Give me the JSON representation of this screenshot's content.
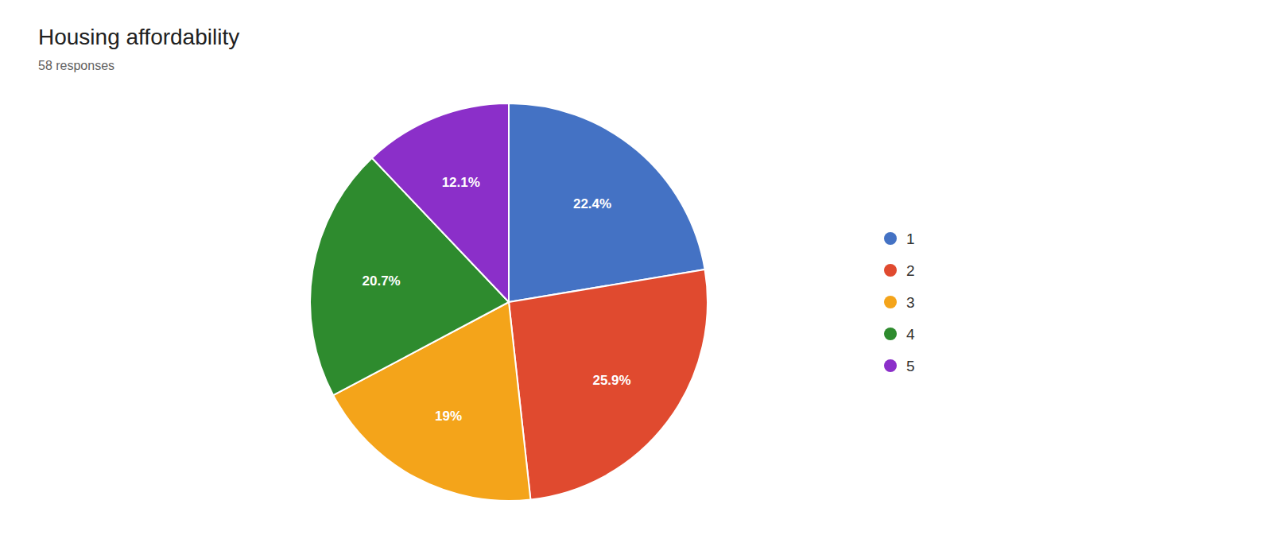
{
  "chart_data": {
    "type": "pie",
    "title": "Housing affordability",
    "subtitle": "58 responses",
    "categories": [
      "1",
      "2",
      "3",
      "4",
      "5"
    ],
    "values": [
      22.4,
      25.9,
      19.0,
      20.7,
      12.1
    ],
    "value_labels": [
      "22.4%",
      "25.9%",
      "19%",
      "20.7%",
      "12.1%"
    ],
    "colors": [
      "#4472C4",
      "#E04A2F",
      "#F4A41A",
      "#2E8B2E",
      "#8B2FC9"
    ],
    "data_labels": true,
    "legend": "right"
  }
}
